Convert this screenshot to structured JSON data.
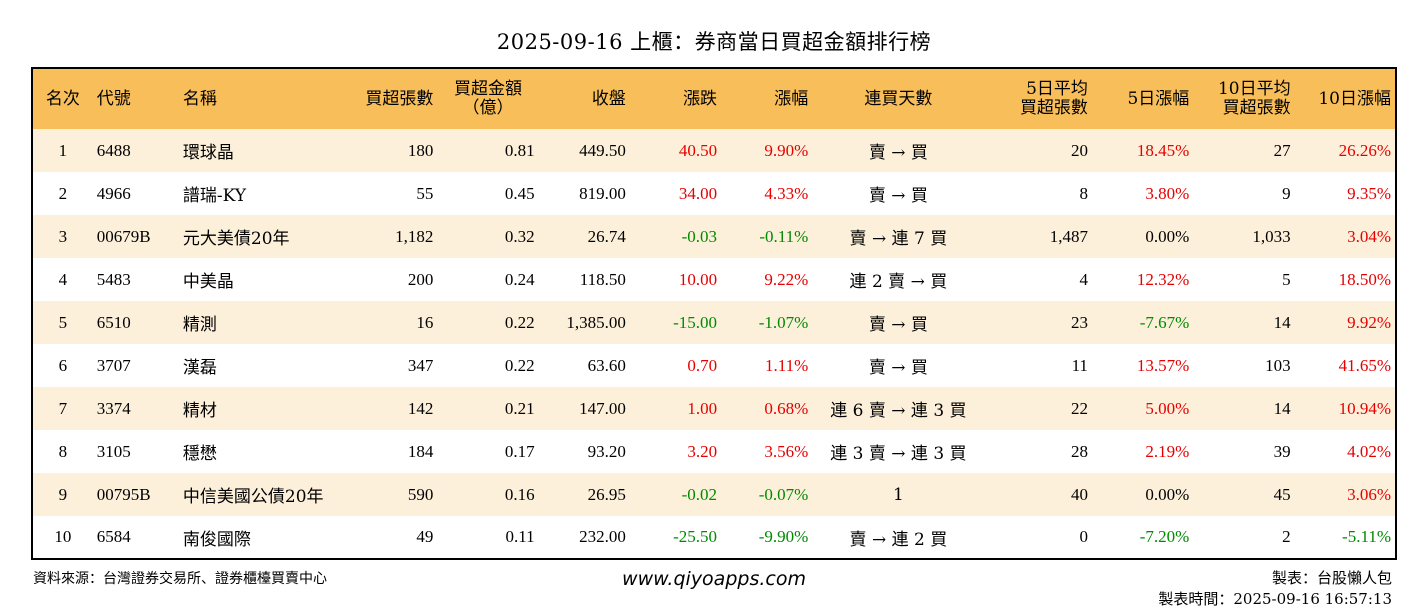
{
  "title": "2025-09-16 上櫃：券商當日買超金額排行榜",
  "colors": {
    "header_bg": "#f8be5a",
    "stripe_bg": "#fdf0da",
    "up": "#e60000",
    "down": "#008a00"
  },
  "headers": {
    "rank": "名次",
    "code": "代號",
    "name": "名稱",
    "buy_lots": "買超張數",
    "amount_line1": "買超金額",
    "amount_line2": "（億）",
    "close": "收盤",
    "change": "漲跌",
    "pct": "漲幅",
    "streak": "連買天數",
    "avg5_line1": "5日平均",
    "avg5_line2": "買超張數",
    "pct5": "5日漲幅",
    "avg10_line1": "10日平均",
    "avg10_line2": "買超張數",
    "pct10": "10日漲幅"
  },
  "rows": [
    {
      "rank": "1",
      "code": "6488",
      "name": "環球晶",
      "lots": "180",
      "amount": "0.81",
      "close": "449.50",
      "change": "40.50",
      "pct": "9.90%",
      "streak": "賣 → 買",
      "avg5": "20",
      "pct5": "18.45%",
      "avg10": "27",
      "pct10": "26.26%",
      "c_change": "red",
      "c_pct": "red",
      "c_pct5": "red",
      "c_pct10": "red"
    },
    {
      "rank": "2",
      "code": "4966",
      "name": "譜瑞-KY",
      "lots": "55",
      "amount": "0.45",
      "close": "819.00",
      "change": "34.00",
      "pct": "4.33%",
      "streak": "賣 → 買",
      "avg5": "8",
      "pct5": "3.80%",
      "avg10": "9",
      "pct10": "9.35%",
      "c_change": "red",
      "c_pct": "red",
      "c_pct5": "red",
      "c_pct10": "red"
    },
    {
      "rank": "3",
      "code": "00679B",
      "name": "元大美債20年",
      "lots": "1,182",
      "amount": "0.32",
      "close": "26.74",
      "change": "-0.03",
      "pct": "-0.11%",
      "streak": "賣 → 連 7 買",
      "avg5": "1,487",
      "pct5": "0.00%",
      "avg10": "1,033",
      "pct10": "3.04%",
      "c_change": "green",
      "c_pct": "green",
      "c_pct5": "",
      "c_pct10": "red"
    },
    {
      "rank": "4",
      "code": "5483",
      "name": "中美晶",
      "lots": "200",
      "amount": "0.24",
      "close": "118.50",
      "change": "10.00",
      "pct": "9.22%",
      "streak": "連 2 賣 → 買",
      "avg5": "4",
      "pct5": "12.32%",
      "avg10": "5",
      "pct10": "18.50%",
      "c_change": "red",
      "c_pct": "red",
      "c_pct5": "red",
      "c_pct10": "red"
    },
    {
      "rank": "5",
      "code": "6510",
      "name": "精測",
      "lots": "16",
      "amount": "0.22",
      "close": "1,385.00",
      "change": "-15.00",
      "pct": "-1.07%",
      "streak": "賣 → 買",
      "avg5": "23",
      "pct5": "-7.67%",
      "avg10": "14",
      "pct10": "9.92%",
      "c_change": "green",
      "c_pct": "green",
      "c_pct5": "green",
      "c_pct10": "red"
    },
    {
      "rank": "6",
      "code": "3707",
      "name": "漢磊",
      "lots": "347",
      "amount": "0.22",
      "close": "63.60",
      "change": "0.70",
      "pct": "1.11%",
      "streak": "賣 → 買",
      "avg5": "11",
      "pct5": "13.57%",
      "avg10": "103",
      "pct10": "41.65%",
      "c_change": "red",
      "c_pct": "red",
      "c_pct5": "red",
      "c_pct10": "red"
    },
    {
      "rank": "7",
      "code": "3374",
      "name": "精材",
      "lots": "142",
      "amount": "0.21",
      "close": "147.00",
      "change": "1.00",
      "pct": "0.68%",
      "streak": "連 6 賣 → 連 3 買",
      "avg5": "22",
      "pct5": "5.00%",
      "avg10": "14",
      "pct10": "10.94%",
      "c_change": "red",
      "c_pct": "red",
      "c_pct5": "red",
      "c_pct10": "red"
    },
    {
      "rank": "8",
      "code": "3105",
      "name": "穩懋",
      "lots": "184",
      "amount": "0.17",
      "close": "93.20",
      "change": "3.20",
      "pct": "3.56%",
      "streak": "連 3 賣 → 連 3 買",
      "avg5": "28",
      "pct5": "2.19%",
      "avg10": "39",
      "pct10": "4.02%",
      "c_change": "red",
      "c_pct": "red",
      "c_pct5": "red",
      "c_pct10": "red"
    },
    {
      "rank": "9",
      "code": "00795B",
      "name": "中信美國公債20年",
      "lots": "590",
      "amount": "0.16",
      "close": "26.95",
      "change": "-0.02",
      "pct": "-0.07%",
      "streak": "1",
      "avg5": "40",
      "pct5": "0.00%",
      "avg10": "45",
      "pct10": "3.06%",
      "c_change": "green",
      "c_pct": "green",
      "c_pct5": "",
      "c_pct10": "red"
    },
    {
      "rank": "10",
      "code": "6584",
      "name": "南俊國際",
      "lots": "49",
      "amount": "0.11",
      "close": "232.00",
      "change": "-25.50",
      "pct": "-9.90%",
      "streak": "賣 → 連 2 買",
      "avg5": "0",
      "pct5": "-7.20%",
      "avg10": "2",
      "pct10": "-5.11%",
      "c_change": "green",
      "c_pct": "green",
      "c_pct5": "green",
      "c_pct10": "green"
    }
  ],
  "footer": {
    "source": "資料來源：台灣證券交易所、證券櫃檯買賣中心",
    "website": "www.qiyoapps.com",
    "author": "製表：台股懶人包",
    "time": "製表時間：2025-09-16 16:57:13"
  }
}
